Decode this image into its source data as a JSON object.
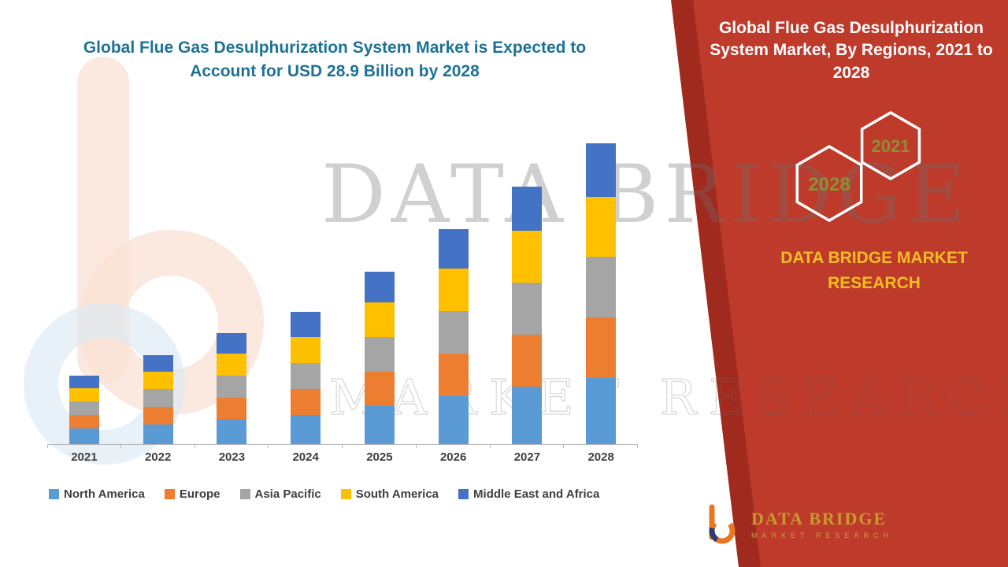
{
  "page": {
    "left_title": "Global Flue Gas Desulphurization System Market is Expected to Account for USD 28.9 Billion by 2028"
  },
  "right_panel": {
    "title": "Global Flue Gas Desulphurization System Market, By Regions, 2021 to 2028",
    "hex_year_front": "2021",
    "hex_year_back": "2028",
    "brand_caption": "DATA BRIDGE MARKET RESEARCH",
    "logo_title": "DATA BRIDGE",
    "logo_subtitle": "MARKET RESEARCH",
    "panel_color": "#be3a2b",
    "caption_color": "#f2be22"
  },
  "watermark": {
    "line1": "DATA BRIDGE",
    "line2": "MARKET RESEARCH"
  },
  "chart_data": {
    "type": "bar",
    "stacked": true,
    "title": "",
    "xlabel": "",
    "ylabel": "",
    "ylim": [
      0,
      30
    ],
    "grid": false,
    "legend_position": "bottom",
    "categories": [
      "2021",
      "2022",
      "2023",
      "2024",
      "2025",
      "2026",
      "2027",
      "2028"
    ],
    "series": [
      {
        "name": "North America",
        "color": "#5b9bd5",
        "values": [
          1.5,
          1.9,
          2.4,
          2.8,
          3.7,
          4.6,
          5.5,
          6.4
        ]
      },
      {
        "name": "Europe",
        "color": "#ed7d31",
        "values": [
          1.3,
          1.7,
          2.1,
          2.5,
          3.3,
          4.1,
          5.0,
          5.8
        ]
      },
      {
        "name": "Asia Pacific",
        "color": "#a5a5a5",
        "values": [
          1.3,
          1.7,
          2.1,
          2.5,
          3.3,
          4.1,
          5.0,
          5.8
        ]
      },
      {
        "name": "South America",
        "color": "#ffc000",
        "values": [
          1.3,
          1.7,
          2.1,
          2.5,
          3.3,
          4.1,
          5.0,
          5.8
        ]
      },
      {
        "name": "Middle East and Africa",
        "color": "#4472c4",
        "values": [
          1.2,
          1.6,
          2.0,
          2.4,
          3.0,
          3.8,
          4.3,
          5.1
        ]
      }
    ]
  }
}
